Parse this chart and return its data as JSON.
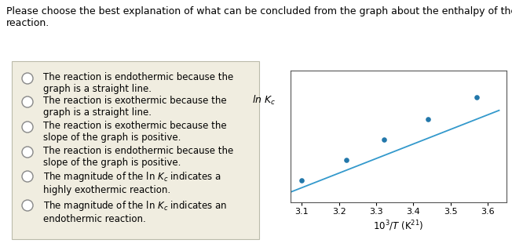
{
  "title_text": "Please choose the best explanation of what can be concluded from the graph about the enthalpy of the\nreaction.",
  "options": [
    "The reaction is endothermic because the\ngraph is a straight line.",
    "The reaction is exothermic because the\ngraph is a straight line.",
    "The reaction is exothermic because the\nslope of the graph is positive.",
    "The reaction is endothermic because the\nslope of the graph is positive.",
    "The magnitude of the ln $K_c$ indicates a\nhighly exothermic reaction.",
    "The magnitude of the ln $K_c$ indicates an\nendothermic reaction."
  ],
  "options_plain": [
    "The reaction is endothermic because the\ngraph is a straight line.",
    "The reaction is exothermic because the\ngraph is a straight line.",
    "The reaction is exothermic because the\nslope of the graph is positive.",
    "The reaction is endothermic because the\nslope of the graph is positive.",
    "The magnitude of the ln Kc indicates a\nhighly exothermic reaction.",
    "The magnitude of the ln Kc indicates an\nendothermic reaction."
  ],
  "scatter_x": [
    3.1,
    3.22,
    3.32,
    3.44,
    3.57
  ],
  "scatter_y": [
    0.62,
    0.82,
    1.02,
    1.22,
    1.44
  ],
  "line_x_start": 3.07,
  "line_x_end": 3.63,
  "line_slope": 1.44,
  "line_intercept": -3.92,
  "xlim": [
    3.07,
    3.65
  ],
  "ylim": [
    0.4,
    1.7
  ],
  "xticks": [
    3.1,
    3.2,
    3.3,
    3.4,
    3.5,
    3.6
  ],
  "line_color": "#3399cc",
  "scatter_color": "#2277aa",
  "bg_color": "#f0ede0",
  "panel_bg": "#ffffff",
  "font_size_title": 9.0,
  "font_size_options": 8.5,
  "box_outline_color": "#bbbbaa",
  "plot_border_color": "#555555"
}
